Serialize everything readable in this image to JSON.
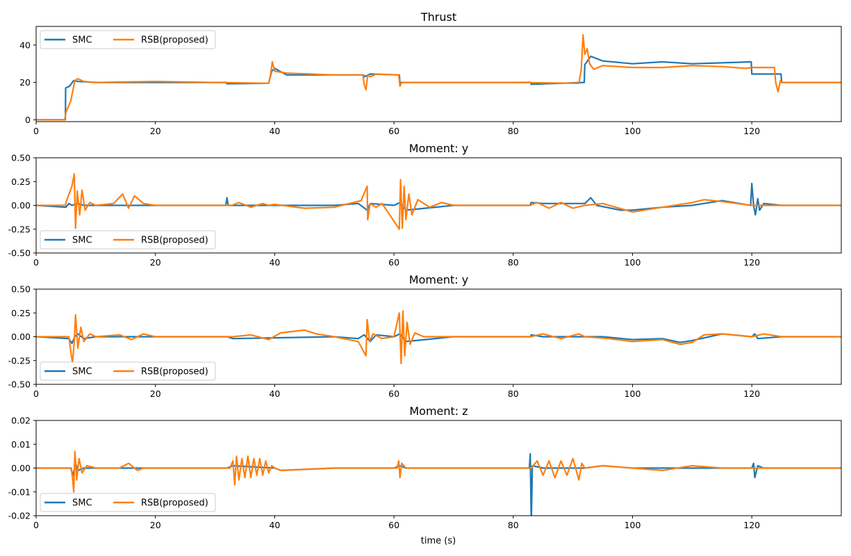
{
  "colors": {
    "SMC": "#1f77b4",
    "RSB": "#ff7f0e"
  },
  "xlabel": "time (s)",
  "chart_data": [
    {
      "type": "line",
      "title": "Thrust",
      "xlim": [
        0,
        135
      ],
      "ylim": [
        -1,
        50
      ],
      "xticks": [
        0,
        20,
        40,
        60,
        80,
        100,
        120
      ],
      "yticks": [
        0,
        20,
        40
      ],
      "legend_position": "top-left",
      "series": [
        {
          "name": "SMC",
          "color": "#1f77b4",
          "x": [
            0,
            4.9,
            4.95,
            5.6,
            6.3,
            7,
            10,
            20,
            31.8,
            32,
            39,
            39.5,
            40,
            42,
            50,
            54.9,
            55,
            56,
            60.9,
            61,
            70,
            82.9,
            83,
            91.9,
            92,
            93,
            95,
            100,
            105,
            110,
            115,
            119.9,
            120,
            123,
            124.9,
            125,
            135
          ],
          "y": [
            0,
            0,
            17,
            18,
            21,
            20.5,
            20,
            20,
            20,
            19.3,
            19.5,
            26,
            27.5,
            24,
            24,
            24,
            23,
            24.5,
            24,
            20,
            20,
            20,
            19,
            20,
            29.5,
            34,
            31.5,
            30,
            31,
            30,
            30.5,
            31,
            24.5,
            24.5,
            24.5,
            20,
            20
          ]
        },
        {
          "name": "RSB(proposed)",
          "color": "#ff7f0e",
          "x": [
            0,
            4.8,
            5,
            5.8,
            6.5,
            7,
            8,
            10,
            20,
            30,
            39,
            39.3,
            39.6,
            40,
            42,
            50,
            54.8,
            55,
            55.3,
            55.6,
            56,
            57,
            60.8,
            61,
            61.3,
            61.7,
            70,
            80,
            91,
            91.4,
            91.7,
            92,
            92.4,
            92.8,
            93.5,
            95,
            100,
            105,
            110,
            115,
            119,
            120,
            123.8,
            124,
            124.4,
            124.8,
            125,
            135
          ],
          "y": [
            0,
            0,
            4,
            10,
            21,
            22,
            20.5,
            20,
            20.5,
            20,
            19.5,
            24,
            31,
            26,
            25,
            24,
            24,
            19,
            16,
            24,
            23,
            24.5,
            24,
            18,
            20,
            20,
            20,
            20,
            19.5,
            27,
            45.5,
            35,
            38,
            30,
            27,
            29,
            28,
            28,
            29,
            28.5,
            27.5,
            28,
            28,
            20,
            15,
            21,
            20,
            20
          ]
        }
      ]
    },
    {
      "type": "line",
      "title": "Moment: y",
      "xlim": [
        0,
        135
      ],
      "ylim": [
        -0.5,
        0.5
      ],
      "xticks": [
        0,
        20,
        40,
        60,
        80,
        100,
        120
      ],
      "yticks": [
        -0.5,
        -0.25,
        0.0,
        0.25,
        0.5
      ],
      "ytick_labels": [
        "-0.50",
        "-0.25",
        "0.00",
        "0.25",
        "0.50"
      ],
      "legend_position": "bottom-left",
      "series": [
        {
          "name": "SMC",
          "color": "#1f77b4",
          "x": [
            0,
            5,
            5.5,
            6,
            7,
            8,
            10,
            31.8,
            32,
            32.2,
            33,
            50,
            54,
            55.5,
            56,
            60,
            61,
            62,
            70,
            82.8,
            83,
            85,
            92,
            93,
            94,
            98,
            100,
            105,
            110,
            115,
            119.8,
            120,
            120.3,
            120.6,
            121,
            121.3,
            122,
            125,
            135
          ],
          "y": [
            0,
            -0.02,
            0.02,
            0,
            0.02,
            0,
            0,
            0,
            0.08,
            0,
            0,
            0,
            0.02,
            -0.05,
            0.02,
            0,
            0.03,
            -0.05,
            0,
            0,
            0.03,
            0.02,
            0.02,
            0.08,
            0,
            -0.05,
            -0.05,
            -0.02,
            0,
            0.05,
            0,
            0.23,
            0,
            -0.1,
            0.07,
            -0.05,
            0.02,
            0,
            0
          ]
        },
        {
          "name": "RSB(proposed)",
          "color": "#ff7f0e",
          "x": [
            0,
            4.9,
            5.1,
            6,
            6.4,
            6.6,
            6.9,
            7.3,
            7.7,
            8.2,
            9,
            10,
            13,
            14.5,
            15.5,
            16.5,
            18,
            20,
            32.8,
            34,
            36,
            38,
            39,
            40,
            45,
            50,
            54.5,
            55.5,
            55.6,
            56,
            57,
            58,
            60.9,
            61.1,
            61.4,
            61.7,
            62,
            62.5,
            63,
            64,
            66,
            68,
            70,
            82.8,
            84,
            86,
            88,
            90,
            92,
            95,
            100,
            105,
            110,
            112,
            115,
            120,
            125,
            135
          ],
          "y": [
            0,
            0,
            0.05,
            0.2,
            0.33,
            -0.24,
            0.15,
            -0.1,
            0.16,
            -0.05,
            0.03,
            0,
            0.02,
            0.12,
            -0.03,
            0.1,
            0.02,
            0,
            0,
            0.03,
            -0.02,
            0.02,
            0,
            0.01,
            -0.03,
            -0.02,
            0.05,
            0.2,
            -0.15,
            0.02,
            -0.02,
            0.02,
            -0.25,
            0.27,
            -0.24,
            0.2,
            -0.15,
            0.12,
            -0.1,
            0.06,
            -0.02,
            0.03,
            0,
            0,
            0.03,
            -0.03,
            0.03,
            -0.03,
            0,
            0.02,
            -0.07,
            -0.02,
            0.03,
            0.06,
            0.04,
            0,
            0,
            0
          ]
        }
      ]
    },
    {
      "type": "line",
      "title": "Moment: y",
      "xlim": [
        0,
        135
      ],
      "ylim": [
        -0.5,
        0.5
      ],
      "xticks": [
        0,
        20,
        40,
        60,
        80,
        100,
        120
      ],
      "yticks": [
        -0.5,
        -0.25,
        0.0,
        0.25,
        0.5
      ],
      "ytick_labels": [
        "-0.50",
        "-0.25",
        "0.00",
        "0.25",
        "0.50"
      ],
      "legend_position": "bottom-left",
      "series": [
        {
          "name": "SMC",
          "color": "#1f77b4",
          "x": [
            0,
            5.5,
            6,
            6.5,
            7,
            8,
            10,
            32,
            33,
            50,
            54,
            55,
            56,
            57,
            60,
            61,
            62,
            70,
            82.9,
            83,
            85,
            90,
            95,
            100,
            105,
            108,
            110,
            115,
            120,
            120.5,
            121,
            125,
            135
          ],
          "y": [
            0,
            -0.02,
            -0.07,
            0,
            0.03,
            -0.02,
            0,
            0,
            -0.02,
            0,
            -0.02,
            0.02,
            -0.05,
            0.02,
            0,
            0.03,
            -0.05,
            0,
            0,
            0.02,
            0,
            0,
            0,
            -0.03,
            -0.02,
            -0.06,
            -0.04,
            0.03,
            0,
            0.03,
            -0.02,
            0,
            0
          ]
        },
        {
          "name": "RSB(proposed)",
          "color": "#ff7f0e",
          "x": [
            0,
            5.5,
            5.9,
            6.1,
            6.4,
            6.6,
            7,
            7.5,
            8,
            9,
            10,
            14,
            16,
            18,
            20,
            33,
            36,
            39,
            41,
            45,
            47,
            50,
            54,
            55.3,
            55.5,
            55.9,
            56.5,
            58,
            60,
            60.9,
            61.2,
            61.5,
            61.8,
            62.2,
            62.7,
            63.5,
            65,
            70,
            82.9,
            85,
            88,
            91,
            92,
            96,
            100,
            105,
            108,
            110,
            112,
            115,
            120,
            122,
            125,
            135
          ],
          "y": [
            0,
            0,
            -0.2,
            -0.27,
            -0.05,
            0.23,
            -0.12,
            0.1,
            -0.05,
            0.03,
            0,
            0.02,
            -0.03,
            0.03,
            0,
            0,
            0.02,
            -0.03,
            0.04,
            0.07,
            0.03,
            0,
            -0.05,
            -0.2,
            0.18,
            -0.05,
            0.03,
            -0.02,
            0,
            0.25,
            -0.28,
            0.27,
            -0.2,
            0.15,
            -0.08,
            0.04,
            0,
            0,
            0,
            0.03,
            -0.02,
            0.03,
            0,
            -0.02,
            -0.05,
            -0.03,
            -0.08,
            -0.06,
            0.02,
            0.03,
            0,
            0.03,
            0,
            0
          ]
        }
      ]
    },
    {
      "type": "line",
      "title": "Moment: z",
      "xlim": [
        0,
        135
      ],
      "ylim": [
        -0.02,
        0.02
      ],
      "xticks": [
        0,
        20,
        40,
        60,
        80,
        100,
        120
      ],
      "yticks": [
        -0.02,
        -0.01,
        0.0,
        0.01,
        0.02
      ],
      "ytick_labels": [
        "-0.02",
        "-0.01",
        "0.00",
        "0.01",
        "0.02"
      ],
      "xlabel": "time (s)",
      "legend_position": "bottom-left",
      "series": [
        {
          "name": "SMC",
          "color": "#1f77b4",
          "x": [
            0,
            5.8,
            6.2,
            6.6,
            7,
            8,
            10,
            32,
            33,
            40,
            41,
            50,
            60,
            61,
            62,
            70,
            82.7,
            82.85,
            83,
            83.05,
            83.2,
            85,
            92,
            95,
            100,
            110,
            120,
            120.3,
            120.5,
            121,
            122,
            135
          ],
          "y": [
            0,
            0,
            -0.003,
            0.002,
            -0.001,
            0,
            0,
            0,
            0.001,
            0,
            -0.001,
            0,
            0,
            0.001,
            0,
            0,
            0,
            0.006,
            -0.02,
            -0.02,
            0.001,
            0,
            0,
            0.001,
            0,
            0,
            0,
            0.002,
            -0.004,
            0.001,
            0,
            0
          ]
        },
        {
          "name": "RSB(proposed)",
          "color": "#ff7f0e",
          "x": [
            0,
            5.9,
            6.1,
            6.3,
            6.5,
            6.8,
            7.2,
            7.7,
            8.5,
            10,
            14,
            15.5,
            17,
            18,
            32.5,
            33,
            33.3,
            33.6,
            34,
            34.5,
            35,
            35.5,
            36,
            36.5,
            37,
            37.5,
            38,
            38.5,
            39,
            39.5,
            40,
            41,
            50,
            60.5,
            60.8,
            61,
            61.3,
            62,
            70,
            83,
            84,
            85,
            86,
            87,
            88,
            89,
            90,
            91,
            91.5,
            92,
            95,
            100,
            105,
            110,
            115,
            120,
            135
          ],
          "y": [
            0,
            0,
            -0.004,
            -0.01,
            0.007,
            -0.005,
            0.004,
            -0.002,
            0.001,
            0,
            0,
            0.002,
            -0.001,
            0,
            0,
            0.003,
            -0.007,
            0.005,
            -0.005,
            0.004,
            -0.004,
            0.005,
            -0.004,
            0.004,
            -0.003,
            0.004,
            -0.003,
            0.003,
            -0.002,
            0.001,
            0,
            -0.001,
            0,
            0,
            0.003,
            -0.004,
            0.002,
            0,
            0,
            0,
            0.003,
            -0.003,
            0.003,
            -0.004,
            0.003,
            -0.003,
            0.004,
            -0.005,
            0.002,
            0,
            0.001,
            0,
            -0.001,
            0.001,
            0,
            0,
            0
          ]
        }
      ]
    }
  ]
}
